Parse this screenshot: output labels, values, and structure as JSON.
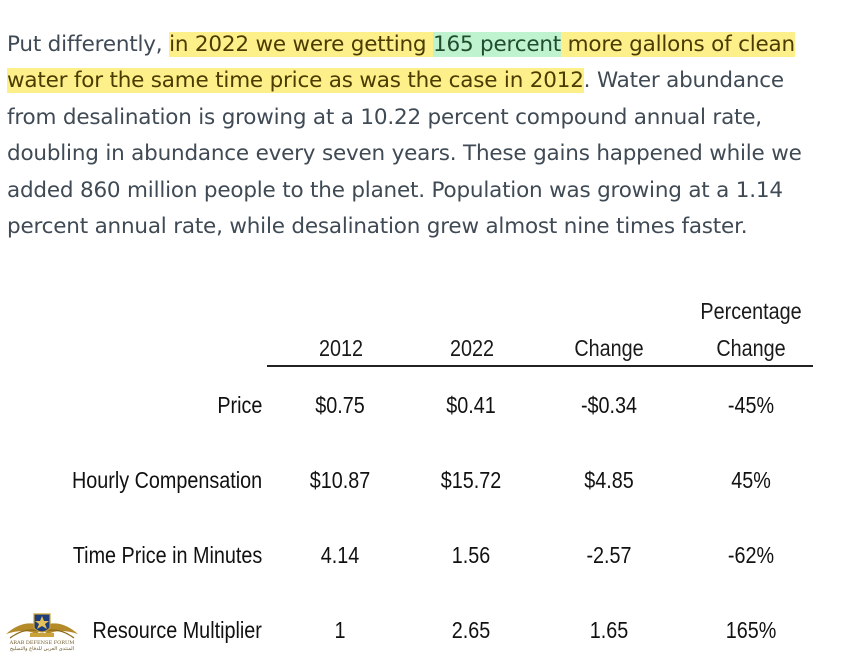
{
  "paragraph": {
    "intro": "Put differently, ",
    "hl1_part1": "in 2022 we were getting ",
    "hl_green": "165 percent",
    "hl1_part2": " more gallons of clean water for the same time price as was the case in 2012",
    "rest": ". Water abundance from desalination is growing at a 10.22 percent compound annual rate, doubling in abundance every seven years. These gains happened while we added 860 million people to the planet. Population was growing at a 1.14 percent annual rate, while desalination grew almost nine times faster."
  },
  "table": {
    "headers": {
      "col_2012": "2012",
      "col_2022": "2022",
      "col_change": "Change",
      "col_pct_line1": "Percentage",
      "col_pct_line2": "Change"
    },
    "rows": [
      {
        "label": "Price",
        "v2012": "$0.75",
        "v2022": "$0.41",
        "change": "-$0.34",
        "pct": "-45%"
      },
      {
        "label": "Hourly Compensation",
        "v2012": "$10.87",
        "v2022": "$15.72",
        "change": "$4.85",
        "pct": "45%"
      },
      {
        "label": "Time Price in Minutes",
        "v2012": "4.14",
        "v2022": "1.56",
        "change": "-2.57",
        "pct": "-62%"
      },
      {
        "label": "Resource Multiplier",
        "v2012": "1",
        "v2022": "2.65",
        "change": "1.65",
        "pct": "165%"
      }
    ]
  },
  "watermark": {
    "logo_icon": "arab-defense-forum-logo-icon",
    "line1": "ARAB DEFENSE FORUM",
    "line2": "المنتدى العربي للدفاع والتسليح"
  },
  "colors": {
    "text": "#3f4a55",
    "highlight_yellow": "#fdf08a",
    "highlight_green": "#bff2cf"
  }
}
